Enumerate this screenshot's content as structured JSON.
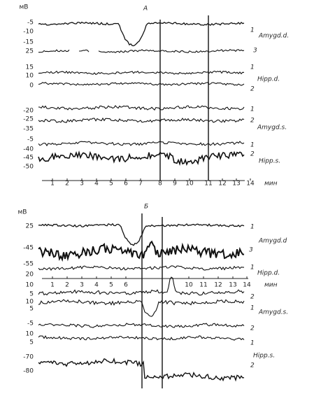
{
  "panels": [
    {
      "label": "А",
      "unit": "мВ",
      "y_labels": [
        -5,
        -10,
        -15,
        25,
        15,
        10,
        0,
        -20,
        -25,
        -35,
        -5,
        -40,
        -45,
        -50
      ],
      "trace_labels": [
        "1",
        "Amygd.d.",
        "3",
        "1",
        "Hipp.d.",
        "2",
        "1",
        "2",
        "Amygd.s.",
        "1",
        "2",
        "Hipp.s."
      ],
      "x_labels": [
        1,
        2,
        3,
        4,
        5,
        6,
        7,
        8,
        9,
        10,
        11,
        12,
        13,
        14
      ],
      "x_unit": "мин"
    },
    {
      "label": "Б",
      "unit": "мВ",
      "y_labels": [
        25,
        -45,
        -55,
        20,
        10,
        5,
        10,
        5,
        -5,
        10,
        5,
        -70,
        -80
      ],
      "trace_labels": [
        "1",
        "Amygd.d",
        "3",
        "1",
        "Hipp.d.",
        "2",
        "1",
        "Amygd.s.",
        "2",
        "1",
        "Hipp.s.",
        "2"
      ],
      "x_labels": [
        1,
        2,
        3,
        4,
        5,
        6,
        10,
        11,
        12,
        13,
        14
      ],
      "x_unit": "мин"
    }
  ]
}
